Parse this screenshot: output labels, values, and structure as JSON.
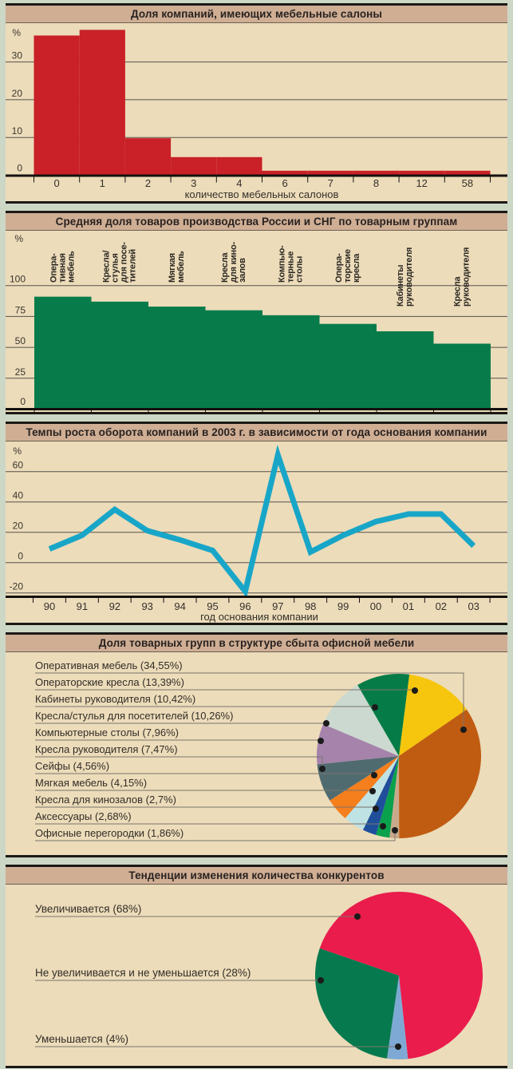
{
  "page": {
    "background": "#cdd7c5",
    "panel_background": "#ecdcba",
    "title_band_background": "#cfae94",
    "panel_border": "#1b1916",
    "grid_color": "#56514a",
    "text_color": "#322d27"
  },
  "chart_data": [
    {
      "type": "bar",
      "variant": "histogram",
      "title": "Доля компаний, имеющих мебельные салоны",
      "ylabel": "%",
      "xlabel": "количество мебельных салонов",
      "categories": [
        "0",
        "1",
        "2",
        "3",
        "4",
        "6",
        "7",
        "8",
        "12",
        "58"
      ],
      "values": [
        37,
        38.5,
        9.8,
        4.8,
        4.8,
        1.2,
        1.2,
        1.2,
        1.2,
        1.2
      ],
      "y_ticks": [
        30,
        20,
        10,
        0
      ],
      "ylim": [
        0,
        40
      ],
      "grid": true,
      "bar_color": "#c92127"
    },
    {
      "type": "bar",
      "variant": "step",
      "title": "Средняя доля товаров производства России и СНГ по товарным группам",
      "ylabel": "%",
      "categories": [
        "Опера-\nтивная\nмебель",
        "Кресла/\nстулья\nдля посе-\nтителей",
        "Мягкая\nмебель",
        "Кресла\nдля кино-\nзалов",
        "Компью-\nтерные\nстолы",
        "Опера-\nторские\nкресла",
        "Кабинеты\nруководителя",
        "Кресла\nруководителя"
      ],
      "values": [
        91,
        87,
        83,
        80,
        76,
        69,
        63,
        53
      ],
      "y_ticks": [
        100,
        75,
        50,
        25,
        0
      ],
      "ylim": [
        0,
        100
      ],
      "grid": true,
      "bar_color": "#077c4a"
    },
    {
      "type": "line",
      "title": "Темпы роста оборота компаний в 2003 г. в зависимости от года основания компании",
      "ylabel": "%",
      "xlabel": "год основания компании",
      "x": [
        "90",
        "91",
        "92",
        "93",
        "94",
        "95",
        "96",
        "97",
        "98",
        "99",
        "00",
        "01",
        "02",
        "03"
      ],
      "values": [
        9,
        18,
        35,
        21,
        15,
        8,
        -19,
        71,
        7,
        18,
        27,
        32,
        32,
        11
      ],
      "y_ticks": [
        60,
        40,
        20,
        0,
        -20
      ],
      "ylim": [
        -25,
        75
      ],
      "grid": true,
      "line_color": "#18a6c8"
    },
    {
      "type": "pie",
      "title": "Доля товарных групп в структуре сбыта офисной мебели",
      "legend_position": "left",
      "start_angle": 7.3,
      "draw_order": [
        1,
        0,
        10,
        9,
        8,
        7,
        6,
        5,
        4,
        3,
        2
      ],
      "slices": [
        {
          "label": "Оперативная мебель (34,55%)",
          "value": 34.55,
          "color": "#c05c12",
          "dot": [
            574,
            97
          ]
        },
        {
          "label": "Операторские кресла (13,39%)",
          "value": 13.39,
          "color": "#f6c60e",
          "dot": [
            513,
            48
          ]
        },
        {
          "label": "Кабинеты руководителя (10,42%)",
          "value": 10.42,
          "color": "#057c47",
          "dot": [
            463,
            69
          ]
        },
        {
          "label": "Кресла/стулья для посетителей (10,26%)",
          "value": 10.26,
          "color": "#cbd9d0",
          "dot": [
            402,
            89
          ]
        },
        {
          "label": "Компьютерные столы (7,96%)",
          "value": 7.96,
          "color": "#a583ab",
          "dot": [
            395,
            111
          ]
        },
        {
          "label": "Кресла руководителя (7,47%)",
          "value": 7.47,
          "color": "#506b70",
          "dot": [
            397,
            146
          ]
        },
        {
          "label": "Сейфы (4,56%)",
          "value": 4.56,
          "color": "#f57e1d",
          "dot": [
            462,
            154
          ]
        },
        {
          "label": "Мягкая мебель (4,15%)",
          "value": 4.15,
          "color": "#bfe2e4",
          "dot": [
            460,
            174
          ]
        },
        {
          "label": "Кресла для кинозалов (2,7%)",
          "value": 2.7,
          "color": "#1f4f9b",
          "dot": [
            464,
            196
          ]
        },
        {
          "label": "Аксессуары (2,68%)",
          "value": 2.68,
          "color": "#0aa14c",
          "dot": [
            473,
            218
          ]
        },
        {
          "label": "Офисные перегородки (1,86%)",
          "value": 1.86,
          "color": "#c9a98c",
          "dot": [
            488,
            223
          ]
        }
      ]
    },
    {
      "type": "pie",
      "title": "Тенденции изменения количества конкурентов",
      "legend_position": "left",
      "start_angle": 289,
      "draw_order": [
        0,
        2,
        1
      ],
      "slices": [
        {
          "label": "Увеличивается (68%)",
          "value": 68,
          "color": "#ea1c4c",
          "dot": [
            441,
            40
          ]
        },
        {
          "label": "Не увеличивается и не уменьшается (28%)",
          "value": 28,
          "color": "#067a4e",
          "dot": [
            395,
            120
          ]
        },
        {
          "label": "Уменьшается (4%)",
          "value": 4,
          "color": "#7fa9d5",
          "dot": [
            492,
            203
          ]
        }
      ]
    }
  ]
}
